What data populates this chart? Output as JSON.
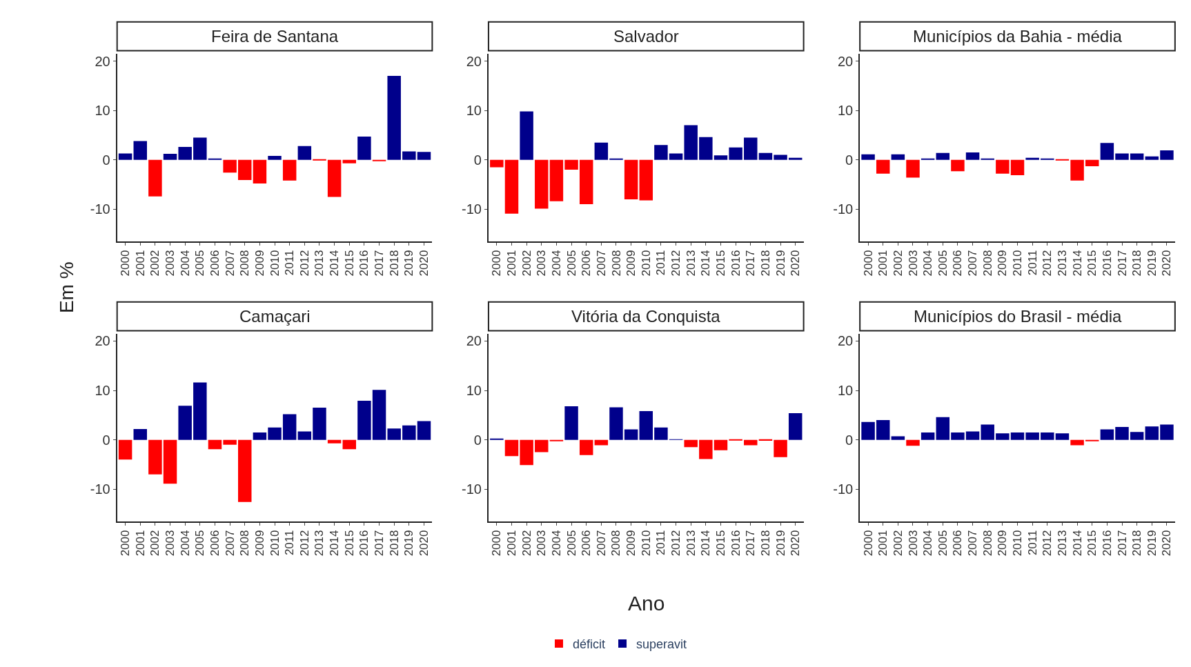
{
  "chart_data": [
    {
      "type": "bar",
      "title": "Feira de Santana",
      "ylabel": "Em %",
      "legend": "bottom",
      "categories": [
        "2000",
        "2001",
        "2002",
        "2003",
        "2004",
        "2005",
        "2006",
        "2007",
        "2008",
        "2009",
        "2010",
        "2011",
        "2012",
        "2013",
        "2014",
        "2015",
        "2016",
        "2017",
        "2018",
        "2019",
        "2020"
      ],
      "ylim": [
        -16.5,
        21.5
      ],
      "yticks": [
        -10,
        0,
        10,
        20
      ],
      "series": [
        {
          "name": "déficit",
          "color": "#ff0000",
          "values": [
            null,
            null,
            -7.4,
            null,
            null,
            null,
            null,
            -2.6,
            -4.1,
            -4.8,
            null,
            -4.2,
            null,
            -0.1,
            -7.5,
            -0.7,
            null,
            -0.3,
            null,
            null,
            null
          ]
        },
        {
          "name": "superavit",
          "color": "#00008b",
          "values": [
            1.3,
            3.8,
            null,
            1.2,
            2.6,
            4.5,
            0.2,
            null,
            null,
            null,
            0.8,
            null,
            2.8,
            null,
            null,
            null,
            4.7,
            null,
            17.0,
            1.7,
            1.6
          ]
        }
      ]
    },
    {
      "type": "bar",
      "title": "Salvador",
      "categories": [
        "2000",
        "2001",
        "2002",
        "2003",
        "2004",
        "2005",
        "2006",
        "2007",
        "2008",
        "2009",
        "2010",
        "2011",
        "2012",
        "2013",
        "2014",
        "2015",
        "2016",
        "2017",
        "2018",
        "2019",
        "2020"
      ],
      "ylim": [
        -16.5,
        21.5
      ],
      "yticks": [
        -10,
        0,
        10,
        20
      ],
      "series": [
        {
          "color": "#ff0000",
          "values": [
            -1.5,
            -10.9,
            null,
            -9.9,
            -8.4,
            -2.0,
            -9.0,
            null,
            null,
            -8.0,
            -8.2,
            null,
            null,
            null,
            null,
            null,
            null,
            null,
            null,
            null,
            null
          ]
        },
        {
          "color": "#00008b",
          "values": [
            null,
            null,
            9.8,
            null,
            null,
            null,
            null,
            3.5,
            0.2,
            null,
            null,
            3.0,
            1.3,
            7.0,
            4.6,
            0.9,
            2.5,
            4.5,
            1.4,
            1.0,
            0.4
          ]
        }
      ]
    },
    {
      "type": "bar",
      "title": "Municípios da Bahia - média",
      "categories": [
        "2000",
        "2001",
        "2002",
        "2003",
        "2004",
        "2005",
        "2006",
        "2007",
        "2008",
        "2009",
        "2010",
        "2011",
        "2012",
        "2013",
        "2014",
        "2015",
        "2016",
        "2017",
        "2018",
        "2019",
        "2020"
      ],
      "ylim": [
        -16.5,
        21.5
      ],
      "yticks": [
        -10,
        0,
        10,
        20
      ],
      "series": [
        {
          "color": "#ff0000",
          "values": [
            null,
            -2.8,
            null,
            -3.6,
            null,
            null,
            -2.3,
            null,
            null,
            -2.8,
            -3.1,
            null,
            null,
            -0.1,
            -4.2,
            -1.3,
            null,
            null,
            null,
            null,
            null
          ]
        },
        {
          "color": "#00008b",
          "values": [
            1.1,
            null,
            1.1,
            null,
            0.2,
            1.4,
            null,
            1.5,
            0.2,
            null,
            null,
            0.4,
            0.2,
            null,
            null,
            null,
            3.4,
            1.3,
            1.3,
            0.7,
            1.9
          ]
        }
      ]
    },
    {
      "type": "bar",
      "title": "Camaçari",
      "categories": [
        "2000",
        "2001",
        "2002",
        "2003",
        "2004",
        "2005",
        "2006",
        "2007",
        "2008",
        "2009",
        "2010",
        "2011",
        "2012",
        "2013",
        "2014",
        "2015",
        "2016",
        "2017",
        "2018",
        "2019",
        "2020"
      ],
      "ylim": [
        -16.5,
        21.5
      ],
      "yticks": [
        -10,
        0,
        10,
        20
      ],
      "series": [
        {
          "color": "#ff0000",
          "values": [
            -4.0,
            null,
            -7.0,
            -8.9,
            null,
            null,
            -1.9,
            -1.0,
            -12.6,
            null,
            null,
            null,
            null,
            null,
            -0.7,
            -1.9,
            null,
            null,
            null,
            null,
            null
          ]
        },
        {
          "color": "#00008b",
          "values": [
            null,
            2.2,
            null,
            null,
            6.9,
            11.6,
            null,
            null,
            null,
            1.5,
            2.5,
            5.2,
            1.7,
            6.5,
            null,
            null,
            7.9,
            10.1,
            2.3,
            2.9,
            3.8
          ]
        }
      ]
    },
    {
      "type": "bar",
      "title": "Vitória da Conquista",
      "xlabel": "Ano",
      "categories": [
        "2000",
        "2001",
        "2002",
        "2003",
        "2004",
        "2005",
        "2006",
        "2007",
        "2008",
        "2009",
        "2010",
        "2011",
        "2012",
        "2013",
        "2014",
        "2015",
        "2016",
        "2017",
        "2018",
        "2019",
        "2020"
      ],
      "ylim": [
        -16.5,
        21.5
      ],
      "yticks": [
        -10,
        0,
        10,
        20
      ],
      "series": [
        {
          "color": "#ff0000",
          "values": [
            null,
            -3.3,
            -5.1,
            -2.5,
            -0.3,
            null,
            -3.1,
            -1.1,
            null,
            null,
            null,
            null,
            null,
            -1.5,
            -3.9,
            -2.1,
            -0.1,
            -1.1,
            -0.2,
            -3.5,
            null
          ]
        },
        {
          "color": "#00008b",
          "values": [
            0.2,
            null,
            null,
            null,
            null,
            6.8,
            null,
            null,
            6.6,
            2.1,
            5.8,
            2.5,
            0.1,
            null,
            null,
            null,
            null,
            null,
            null,
            null,
            5.4
          ]
        }
      ]
    },
    {
      "type": "bar",
      "title": "Municípios do Brasil - média",
      "categories": [
        "2000",
        "2001",
        "2002",
        "2003",
        "2004",
        "2005",
        "2006",
        "2007",
        "2008",
        "2009",
        "2010",
        "2011",
        "2012",
        "2013",
        "2014",
        "2015",
        "2016",
        "2017",
        "2018",
        "2019",
        "2020"
      ],
      "ylim": [
        -16.5,
        21.5
      ],
      "yticks": [
        -10,
        0,
        10,
        20
      ],
      "series": [
        {
          "color": "#ff0000",
          "values": [
            null,
            null,
            null,
            -1.2,
            null,
            null,
            null,
            null,
            null,
            null,
            null,
            null,
            null,
            null,
            -1.1,
            -0.3,
            null,
            null,
            null,
            null,
            null
          ]
        },
        {
          "color": "#00008b",
          "values": [
            3.6,
            4.0,
            0.7,
            null,
            1.5,
            4.6,
            1.5,
            1.7,
            3.1,
            1.3,
            1.5,
            1.5,
            1.5,
            1.3,
            null,
            null,
            2.1,
            2.6,
            1.6,
            2.7,
            3.1
          ]
        }
      ]
    }
  ]
}
